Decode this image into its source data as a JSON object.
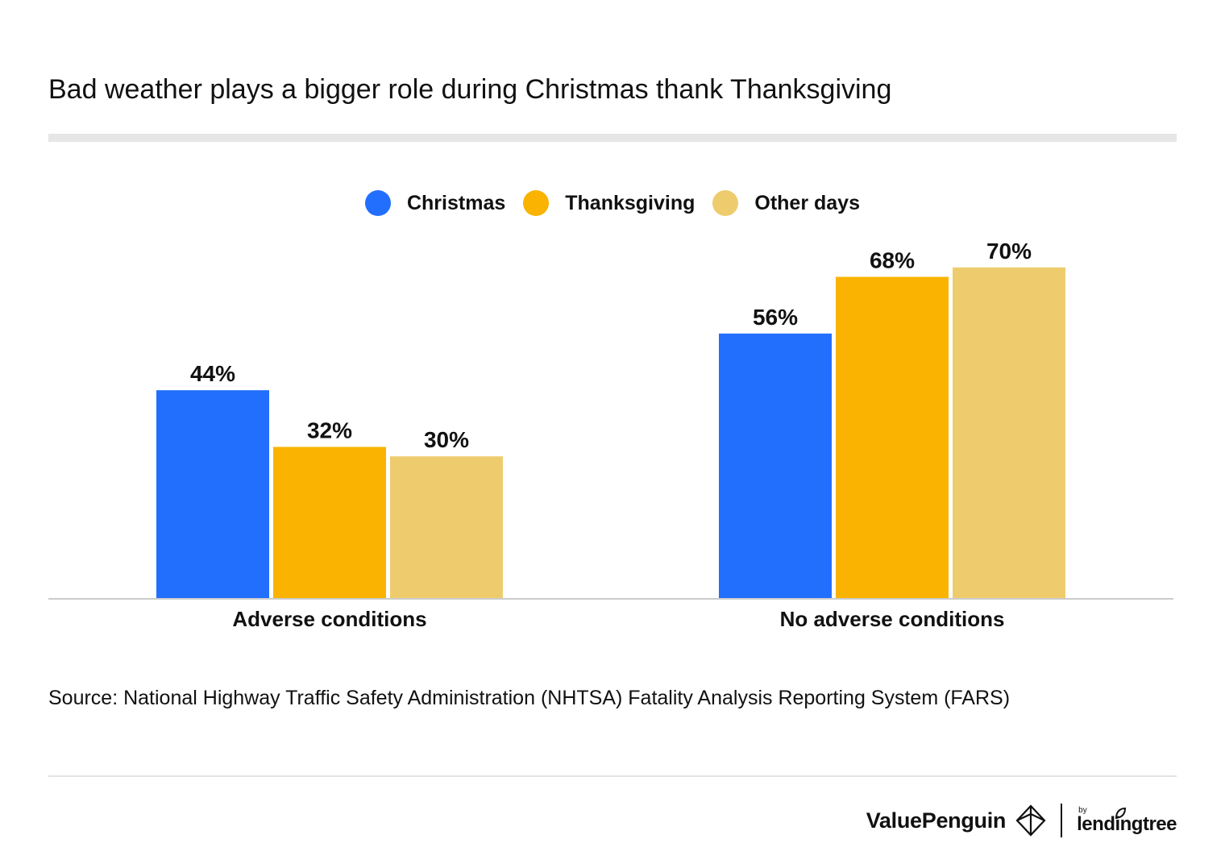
{
  "title": "Bad weather plays a bigger role during Christmas thank Thanksgiving",
  "source": "Source: National Highway Traffic Safety Administration (NHTSA) Fatality Analysis Reporting System (FARS)",
  "brand": {
    "name": "ValuePenguin",
    "by": "by",
    "partner": "lendingtree",
    "logo_icon": "penguin-diamond-icon",
    "partner_icon": "leaf-icon"
  },
  "colors": {
    "christmas": "#226ffd",
    "thanksgiving": "#f9b300",
    "other_days": "#eecc6e",
    "axis": "#cccccc"
  },
  "chart_data": {
    "type": "bar",
    "title": "Bad weather plays a bigger role during Christmas thank Thanksgiving",
    "categories": [
      "Adverse conditions",
      "No adverse conditions"
    ],
    "series": [
      {
        "name": "Christmas",
        "values": [
          44,
          56
        ],
        "color": "#226ffd"
      },
      {
        "name": "Thanksgiving",
        "values": [
          32,
          68
        ],
        "color": "#f9b300"
      },
      {
        "name": "Other days",
        "values": [
          30,
          70
        ],
        "color": "#eecc6e"
      }
    ],
    "value_suffix": "%",
    "ylim": [
      0,
      100
    ],
    "xlabel": "",
    "ylabel": "",
    "grid": false,
    "legend": "top-center"
  }
}
